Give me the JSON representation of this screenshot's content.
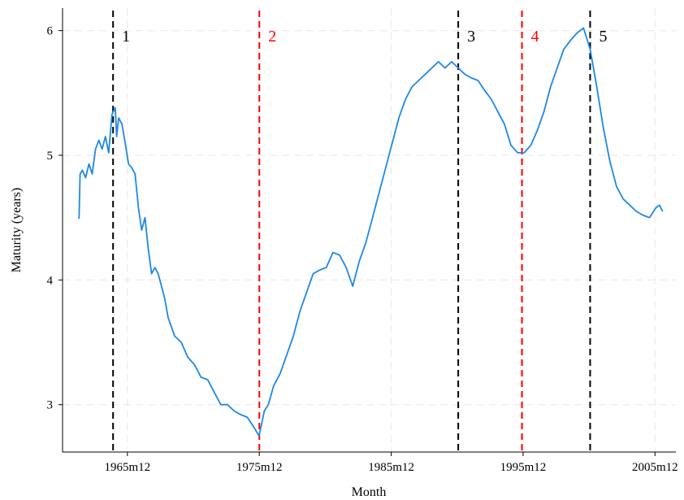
{
  "chart_data": {
    "type": "line",
    "title": "",
    "xlabel": "Month",
    "ylabel": "Maturity (years)",
    "xlim": [
      1961.0,
      2007.5
    ],
    "ylim": [
      2.62,
      6.18
    ],
    "x_ticks": [
      {
        "value": 1965.917,
        "label": "1965m12"
      },
      {
        "value": 1975.917,
        "label": "1975m12"
      },
      {
        "value": 1985.917,
        "label": "1985m12"
      },
      {
        "value": 1995.917,
        "label": "1995m12"
      },
      {
        "value": 2005.917,
        "label": "2005m12"
      }
    ],
    "y_ticks": [
      {
        "value": 3,
        "label": "3"
      },
      {
        "value": 4,
        "label": "4"
      },
      {
        "value": 5,
        "label": "5"
      },
      {
        "value": 6,
        "label": "6"
      }
    ],
    "grid": true,
    "series": [
      {
        "color": "#1E88E5",
        "x": [
          1962.25,
          1962.33,
          1962.5,
          1962.75,
          1963.0,
          1963.25,
          1963.5,
          1963.75,
          1964.0,
          1964.25,
          1964.5,
          1964.75,
          1965.0,
          1965.1,
          1965.25,
          1965.5,
          1965.75,
          1966.0,
          1966.25,
          1966.5,
          1966.75,
          1967.0,
          1967.25,
          1967.5,
          1967.75,
          1968.0,
          1968.25,
          1968.5,
          1968.75,
          1969.0,
          1969.5,
          1970.0,
          1970.5,
          1971.0,
          1971.5,
          1972.0,
          1972.5,
          1973.0,
          1973.5,
          1974.0,
          1974.5,
          1975.0,
          1975.5,
          1975.9,
          1976.1,
          1976.3,
          1976.6,
          1977.0,
          1977.5,
          1978.0,
          1978.5,
          1979.0,
          1979.5,
          1980.0,
          1980.5,
          1981.0,
          1981.5,
          1982.0,
          1982.5,
          1983.0,
          1983.5,
          1984.0,
          1984.5,
          1985.0,
          1985.5,
          1986.0,
          1986.5,
          1987.0,
          1987.5,
          1988.0,
          1988.5,
          1989.0,
          1989.5,
          1990.0,
          1990.5,
          1991.0,
          1991.5,
          1992.0,
          1992.5,
          1993.0,
          1993.5,
          1994.0,
          1994.5,
          1995.0,
          1995.5,
          1996.0,
          1996.5,
          1997.0,
          1997.5,
          1998.0,
          1998.5,
          1999.0,
          1999.5,
          2000.0,
          2000.5,
          2001.0,
          2001.5,
          2002.0,
          2002.5,
          2003.0,
          2003.5,
          2004.0,
          2004.5,
          2005.0,
          2005.5,
          2006.0,
          2006.25,
          2006.5
        ],
        "y": [
          4.49,
          4.85,
          4.88,
          4.82,
          4.93,
          4.85,
          5.05,
          5.12,
          5.05,
          5.15,
          5.02,
          5.33,
          5.38,
          5.15,
          5.3,
          5.25,
          5.1,
          4.93,
          4.9,
          4.85,
          4.58,
          4.4,
          4.5,
          4.25,
          4.05,
          4.1,
          4.05,
          3.95,
          3.85,
          3.7,
          3.55,
          3.5,
          3.38,
          3.32,
          3.22,
          3.2,
          3.1,
          3.0,
          3.0,
          2.95,
          2.92,
          2.9,
          2.82,
          2.75,
          2.85,
          2.95,
          3.0,
          3.15,
          3.25,
          3.4,
          3.55,
          3.75,
          3.9,
          4.05,
          4.08,
          4.1,
          4.22,
          4.2,
          4.1,
          3.95,
          4.15,
          4.3,
          4.5,
          4.7,
          4.9,
          5.1,
          5.3,
          5.45,
          5.55,
          5.6,
          5.65,
          5.7,
          5.75,
          5.7,
          5.75,
          5.7,
          5.65,
          5.62,
          5.6,
          5.52,
          5.45,
          5.35,
          5.25,
          5.08,
          5.02,
          5.02,
          5.08,
          5.2,
          5.35,
          5.55,
          5.7,
          5.85,
          5.92,
          5.98,
          6.02,
          5.85,
          5.55,
          5.22,
          4.95,
          4.75,
          4.65,
          4.6,
          4.55,
          4.52,
          4.5,
          4.58,
          4.6,
          4.55
        ]
      }
    ],
    "vertical_lines": [
      {
        "x": 1964.83,
        "label": "1",
        "color": "#000000"
      },
      {
        "x": 1975.92,
        "label": "2",
        "color": "#FF0000"
      },
      {
        "x": 1991.0,
        "label": "3",
        "color": "#000000"
      },
      {
        "x": 1995.83,
        "label": "4",
        "color": "#FF0000"
      },
      {
        "x": 2001.0,
        "label": "5",
        "color": "#000000"
      }
    ]
  }
}
